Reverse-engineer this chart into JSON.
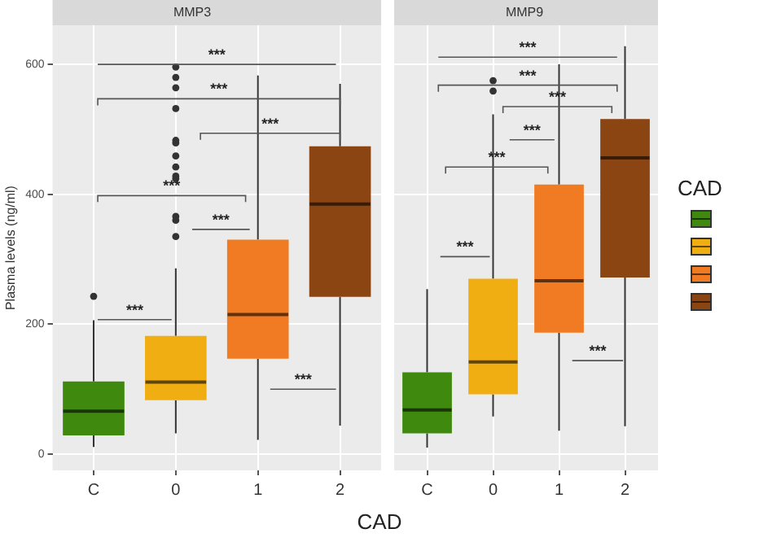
{
  "chart_data": [
    {
      "type": "box",
      "title": "MMP3",
      "ylabel": "Plasma levels (ng/ml)",
      "xlabel": "CAD",
      "categories": [
        "C",
        "0",
        "1",
        "2"
      ],
      "colors": [
        "#3f8a0e",
        "#f0ae13",
        "#f07b22",
        "#8b4513"
      ],
      "ylim": [
        -25,
        660
      ],
      "yticks": [
        0,
        200,
        400,
        600
      ],
      "grid": true,
      "boxes": [
        {
          "low": 11,
          "q1": 29,
          "median": 66,
          "q3": 112,
          "high": 206,
          "outliers": [
            243
          ]
        },
        {
          "low": 32,
          "q1": 83,
          "median": 111,
          "q3": 182,
          "high": 286,
          "outliers": [
            335,
            360,
            366,
            424,
            428,
            442,
            459,
            479,
            483,
            532,
            564,
            580,
            596
          ]
        },
        {
          "low": 22,
          "q1": 147,
          "median": 215,
          "q3": 330,
          "high": 583
        },
        {
          "low": 44,
          "q1": 242,
          "median": 385,
          "q3": 474,
          "high": 570
        }
      ],
      "annotations": [
        "***",
        "***",
        "***",
        "***",
        "***",
        "***",
        "***"
      ]
    },
    {
      "type": "box",
      "title": "MMP9",
      "categories": [
        "C",
        "0",
        "1",
        "2"
      ],
      "colors": [
        "#3f8a0e",
        "#f0ae13",
        "#f07b22",
        "#8b4513"
      ],
      "ylim": [
        -25,
        660
      ],
      "yticks": [
        0,
        200,
        400,
        600
      ],
      "grid": true,
      "tick_labels": "x",
      "legend_title": "CAD",
      "boxes": [
        {
          "low": 10,
          "q1": 32,
          "median": 68,
          "q3": 126,
          "high": 254
        },
        {
          "low": 58,
          "q1": 92,
          "median": 142,
          "q3": 270,
          "high": 523,
          "outliers": [
            559,
            575
          ]
        },
        {
          "low": 36,
          "q1": 187,
          "median": 267,
          "q3": 415,
          "high": 600
        },
        {
          "low": 43,
          "q1": 272,
          "median": 456,
          "q3": 516,
          "high": 628
        }
      ],
      "annotations": [
        "***",
        "***",
        "***",
        "***",
        "***",
        "***",
        "***"
      ]
    }
  ]
}
